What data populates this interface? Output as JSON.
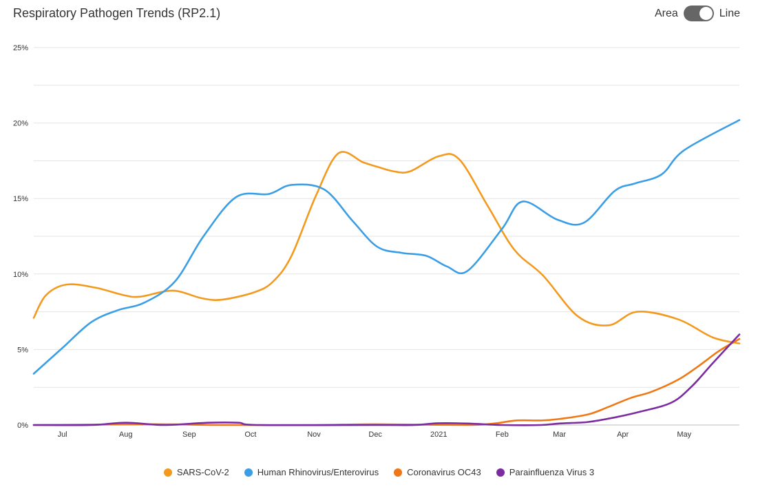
{
  "header": {
    "title": "Respiratory Pathogen Trends (RP2.1)",
    "toggle_left": "Area",
    "toggle_right": "Line",
    "toggle_state": "Line"
  },
  "chart_data": {
    "type": "line",
    "title": "Respiratory Pathogen Trends (RP2.1)",
    "xlabel": "",
    "ylabel": "",
    "y_unit": "%",
    "ylim": [
      0,
      25
    ],
    "y_ticks": [
      0,
      5,
      10,
      15,
      20,
      25
    ],
    "y_tick_labels": [
      "0%",
      "5%",
      "10%",
      "15%",
      "20%",
      "25%"
    ],
    "xlim": [
      "2020-06-17",
      "2021-05-28"
    ],
    "x_ticks": [
      "2020-07-01",
      "2020-08-01",
      "2020-09-01",
      "2020-10-01",
      "2020-11-01",
      "2020-12-01",
      "2021-01-01",
      "2021-02-01",
      "2021-03-01",
      "2021-04-01",
      "2021-05-01"
    ],
    "x_tick_labels": [
      "Jul",
      "Aug",
      "Sep",
      "Oct",
      "Nov",
      "Dec",
      "2021",
      "Feb",
      "Mar",
      "Apr",
      "May"
    ],
    "grid": true,
    "legend_position": "bottom",
    "series": [
      {
        "name": "SARS-CoV-2",
        "color": "#f39a1e",
        "x": [
          "2020-06-17",
          "2020-06-23",
          "2020-07-03",
          "2020-07-17",
          "2020-07-31",
          "2020-08-08",
          "2020-08-24",
          "2020-09-07",
          "2020-09-17",
          "2020-10-03",
          "2020-10-12",
          "2020-10-21",
          "2020-11-02",
          "2020-11-13",
          "2020-11-25",
          "2020-12-02",
          "2020-12-10",
          "2020-12-18",
          "2021-01-01",
          "2021-01-11",
          "2021-01-25",
          "2021-02-07",
          "2021-02-21",
          "2021-03-10",
          "2021-03-25",
          "2021-04-08",
          "2021-04-28",
          "2021-05-15",
          "2021-05-28"
        ],
        "y": [
          7.1,
          8.6,
          9.3,
          9.1,
          8.6,
          8.5,
          8.9,
          8.4,
          8.3,
          8.8,
          9.5,
          11.2,
          15.2,
          18.0,
          17.4,
          17.1,
          16.8,
          16.8,
          17.8,
          17.6,
          14.5,
          11.6,
          9.9,
          7.2,
          6.6,
          7.5,
          7.0,
          5.8,
          5.4
        ]
      },
      {
        "name": "Human Rhinovirus/Enterovirus",
        "color": "#3a9ee6",
        "x": [
          "2020-06-17",
          "2020-07-01",
          "2020-07-15",
          "2020-07-28",
          "2020-08-10",
          "2020-08-25",
          "2020-09-08",
          "2020-09-24",
          "2020-10-10",
          "2020-10-21",
          "2020-11-06",
          "2020-11-20",
          "2020-12-02",
          "2020-12-14",
          "2020-12-26",
          "2021-01-05",
          "2021-01-15",
          "2021-02-01",
          "2021-02-11",
          "2021-02-28",
          "2021-03-13",
          "2021-03-28",
          "2021-04-07",
          "2021-04-20",
          "2021-05-01",
          "2021-05-28"
        ],
        "y": [
          3.4,
          5.1,
          6.8,
          7.6,
          8.1,
          9.5,
          12.5,
          15.1,
          15.3,
          15.9,
          15.6,
          13.5,
          11.8,
          11.4,
          11.2,
          10.5,
          10.2,
          13.0,
          14.8,
          13.6,
          13.4,
          15.5,
          16.0,
          16.6,
          18.2,
          20.2
        ]
      },
      {
        "name": "Coronavirus OC43",
        "color": "#f07814",
        "x": [
          "2020-06-17",
          "2020-08-15",
          "2020-09-15",
          "2020-11-01",
          "2020-12-01",
          "2021-01-15",
          "2021-01-28",
          "2021-02-08",
          "2021-02-20",
          "2021-03-01",
          "2021-03-15",
          "2021-03-25",
          "2021-04-05",
          "2021-04-15",
          "2021-04-28",
          "2021-05-08",
          "2021-05-18",
          "2021-05-28"
        ],
        "y": [
          0.0,
          0.05,
          0.0,
          0.0,
          0.05,
          0.0,
          0.1,
          0.3,
          0.3,
          0.4,
          0.7,
          1.2,
          1.8,
          2.2,
          3.0,
          3.9,
          4.9,
          5.7
        ]
      },
      {
        "name": "Parainfluenza Virus 3",
        "color": "#7b2ba0",
        "x": [
          "2020-06-17",
          "2020-07-15",
          "2020-08-01",
          "2020-08-20",
          "2020-09-10",
          "2020-09-25",
          "2020-10-05",
          "2020-12-01",
          "2020-12-20",
          "2021-01-01",
          "2021-01-15",
          "2021-02-01",
          "2021-02-20",
          "2021-03-01",
          "2021-03-15",
          "2021-03-28",
          "2021-04-10",
          "2021-04-25",
          "2021-05-05",
          "2021-05-15",
          "2021-05-28"
        ],
        "y": [
          0.0,
          0.0,
          0.15,
          0.0,
          0.15,
          0.15,
          0.0,
          0.0,
          0.0,
          0.12,
          0.1,
          0.0,
          0.0,
          0.1,
          0.2,
          0.5,
          0.9,
          1.5,
          2.6,
          4.1,
          6.0
        ]
      }
    ]
  }
}
